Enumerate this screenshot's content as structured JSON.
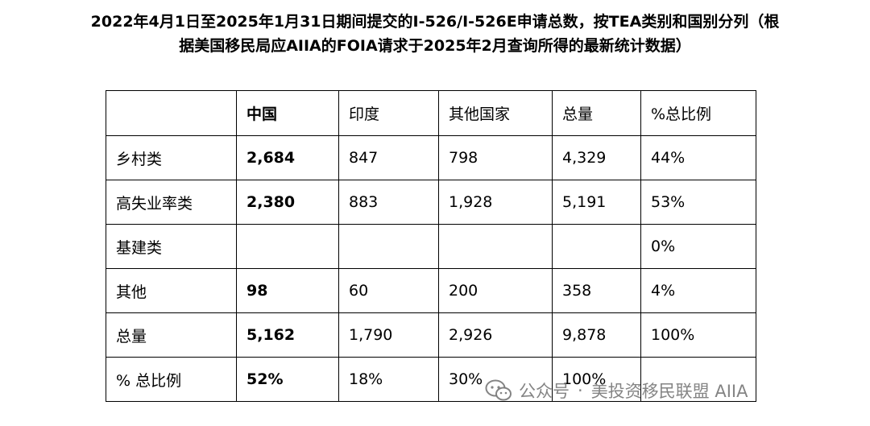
{
  "title": {
    "line1": "2022年4月1日至2025年1月31日期间提交的I-526/I-526E申请总数，按TEA类别和国别分列（根",
    "line2": "据美国移民局应AIIA的FOIA请求于2025年2月查询所得的最新统计数据）"
  },
  "table": {
    "headers": [
      "",
      "中国",
      "印度",
      "其他国家",
      "总量",
      "%总比例"
    ],
    "rows": [
      [
        "乡村类",
        "2,684",
        "847",
        "798",
        "4,329",
        "44%"
      ],
      [
        "高失业率类",
        "2,380",
        "883",
        "1,928",
        "5,191",
        "53%"
      ],
      [
        "基建类",
        "",
        "",
        "",
        "",
        "0%"
      ],
      [
        "其他",
        "98",
        "60",
        "200",
        "358",
        "4%"
      ],
      [
        "总量",
        "5,162",
        "1,790",
        "2,926",
        "9,878",
        "100%"
      ],
      [
        "% 总比例",
        "52%",
        "18%",
        "30%",
        "100%",
        ""
      ]
    ]
  },
  "watermark": {
    "icon": "wechat-icon",
    "prefix": "公众号",
    "separator": "·",
    "name": "美投资移民联盟 AIIA"
  }
}
